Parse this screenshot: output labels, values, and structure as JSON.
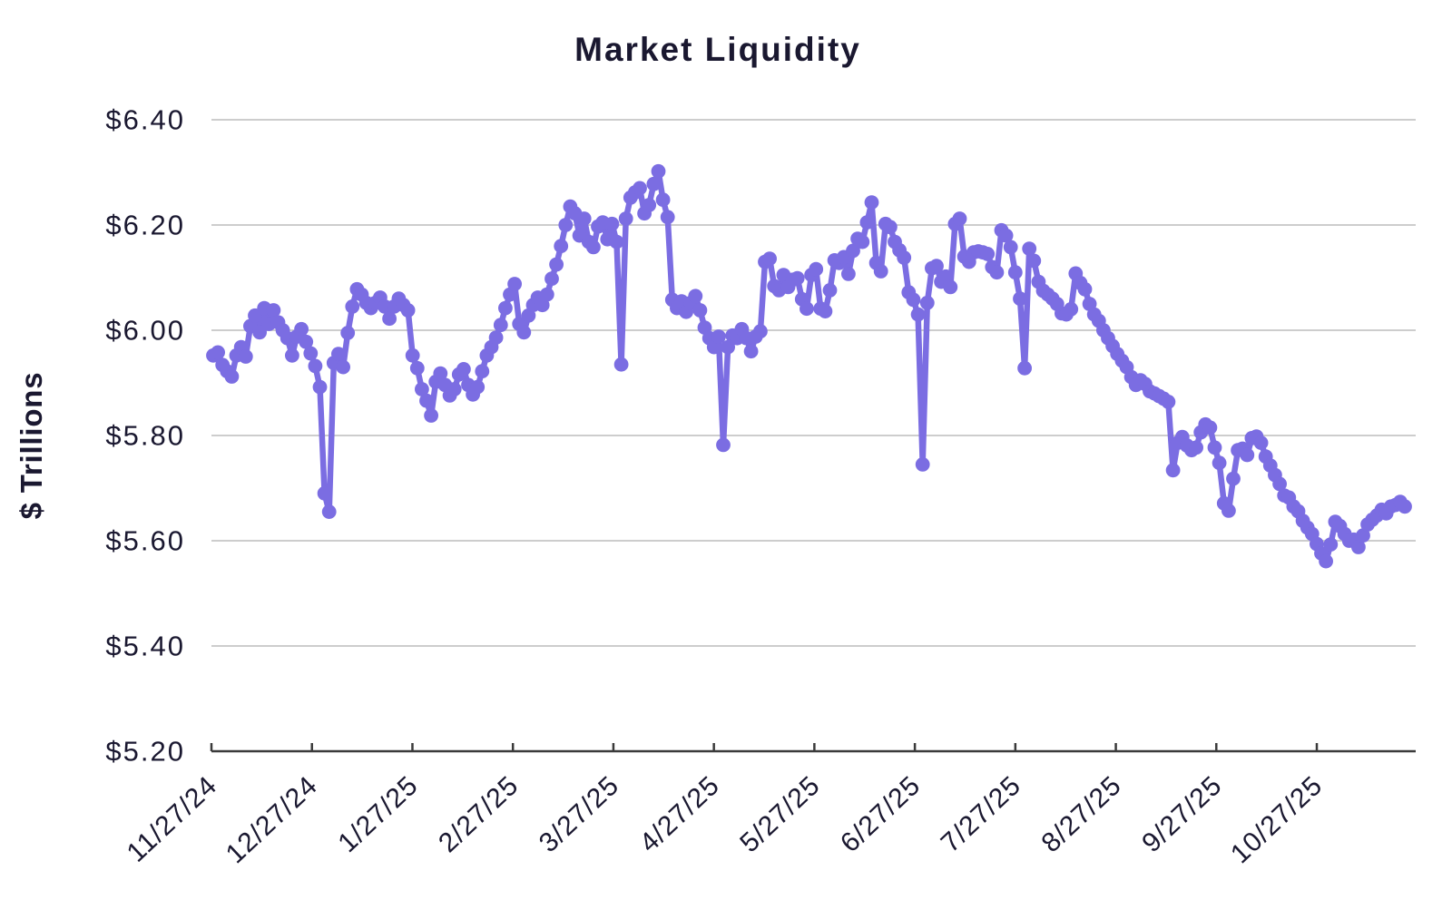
{
  "title": "Market Liquidity",
  "y_axis": {
    "label": "$ Trillions"
  },
  "colors": {
    "line": "#7b6de2",
    "text": "#1a1830",
    "grid": "#cdcdcd",
    "axis": "#3a3a3a"
  },
  "chart_data": {
    "type": "line",
    "title": "Market Liquidity",
    "xlabel": "",
    "ylabel": "$ Trillions",
    "ylim": [
      5.2,
      6.4
    ],
    "y_tick_labels": [
      "$6.40",
      "$6.20",
      "$6.00",
      "$5.80",
      "$5.60",
      "$5.40",
      "$5.20"
    ],
    "y_tick_values": [
      6.4,
      6.2,
      6.0,
      5.8,
      5.6,
      5.4,
      5.2
    ],
    "x_tick_labels": [
      "11/27/24",
      "12/27/24",
      "1/27/25",
      "2/27/25",
      "3/27/25",
      "4/27/25",
      "5/27/25",
      "6/27/25",
      "7/27/25",
      "8/27/25",
      "9/27/25",
      "10/27/25"
    ],
    "grid": "horizontal",
    "legend": "none",
    "marker": "circle",
    "series": [
      {
        "name": "Market Liquidity",
        "values": [
          5.952,
          5.958,
          5.934,
          5.922,
          5.912,
          5.952,
          5.968,
          5.95,
          6.008,
          6.028,
          5.996,
          6.042,
          6.012,
          6.038,
          6.015,
          6.0,
          5.985,
          5.952,
          5.988,
          6.002,
          5.978,
          5.956,
          5.932,
          5.892,
          5.69,
          5.655,
          5.938,
          5.955,
          5.93,
          5.995,
          6.045,
          6.078,
          6.068,
          6.052,
          6.042,
          6.052,
          6.062,
          6.045,
          6.022,
          6.045,
          6.06,
          6.048,
          6.038,
          5.952,
          5.928,
          5.888,
          5.866,
          5.838,
          5.902,
          5.918,
          5.896,
          5.876,
          5.888,
          5.916,
          5.926,
          5.896,
          5.878,
          5.892,
          5.922,
          5.952,
          5.968,
          5.986,
          6.01,
          6.042,
          6.068,
          6.088,
          6.012,
          5.996,
          6.028,
          6.048,
          6.062,
          6.048,
          6.068,
          6.098,
          6.125,
          6.16,
          6.2,
          6.235,
          6.222,
          6.18,
          6.212,
          6.168,
          6.158,
          6.197,
          6.205,
          6.173,
          6.202,
          6.168,
          5.935,
          6.212,
          6.252,
          6.262,
          6.27,
          6.222,
          6.238,
          6.278,
          6.302,
          6.248,
          6.215,
          6.058,
          6.042,
          6.055,
          6.035,
          6.052,
          6.065,
          6.038,
          6.005,
          5.985,
          5.968,
          5.988,
          5.782,
          5.968,
          5.99,
          5.985,
          6.002,
          5.985,
          5.96,
          5.988,
          5.998,
          6.13,
          6.136,
          6.084,
          6.076,
          6.105,
          6.082,
          6.096,
          6.099,
          6.059,
          6.041,
          6.105,
          6.116,
          6.041,
          6.036,
          6.076,
          6.133,
          6.128,
          6.139,
          6.107,
          6.151,
          6.174,
          6.168,
          6.205,
          6.243,
          6.128,
          6.112,
          6.202,
          6.196,
          6.168,
          6.152,
          6.138,
          6.072,
          6.058,
          6.03,
          5.745,
          6.052,
          6.118,
          6.122,
          6.092,
          6.102,
          6.082,
          6.202,
          6.212,
          6.14,
          6.13,
          6.148,
          6.15,
          6.148,
          6.145,
          6.12,
          6.11,
          6.19,
          6.18,
          6.158,
          6.11,
          6.06,
          5.928,
          6.155,
          6.132,
          6.092,
          6.075,
          6.068,
          6.06,
          6.05,
          6.032,
          6.03,
          6.04,
          6.108,
          6.09,
          6.078,
          6.05,
          6.03,
          6.018,
          6.0,
          5.985,
          5.97,
          5.955,
          5.942,
          5.93,
          5.911,
          5.896,
          5.905,
          5.898,
          5.884,
          5.88,
          5.875,
          5.87,
          5.864,
          5.734,
          5.786,
          5.797,
          5.781,
          5.772,
          5.777,
          5.806,
          5.821,
          5.815,
          5.777,
          5.748,
          5.671,
          5.657,
          5.718,
          5.772,
          5.775,
          5.763,
          5.795,
          5.798,
          5.786,
          5.76,
          5.743,
          5.725,
          5.708,
          5.686,
          5.682,
          5.665,
          5.656,
          5.638,
          5.625,
          5.613,
          5.594,
          5.576,
          5.561,
          5.593,
          5.636,
          5.628,
          5.613,
          5.6,
          5.602,
          5.588,
          5.61,
          5.631,
          5.64,
          5.648,
          5.659,
          5.652,
          5.665,
          5.668,
          5.674,
          5.665
        ]
      }
    ]
  }
}
